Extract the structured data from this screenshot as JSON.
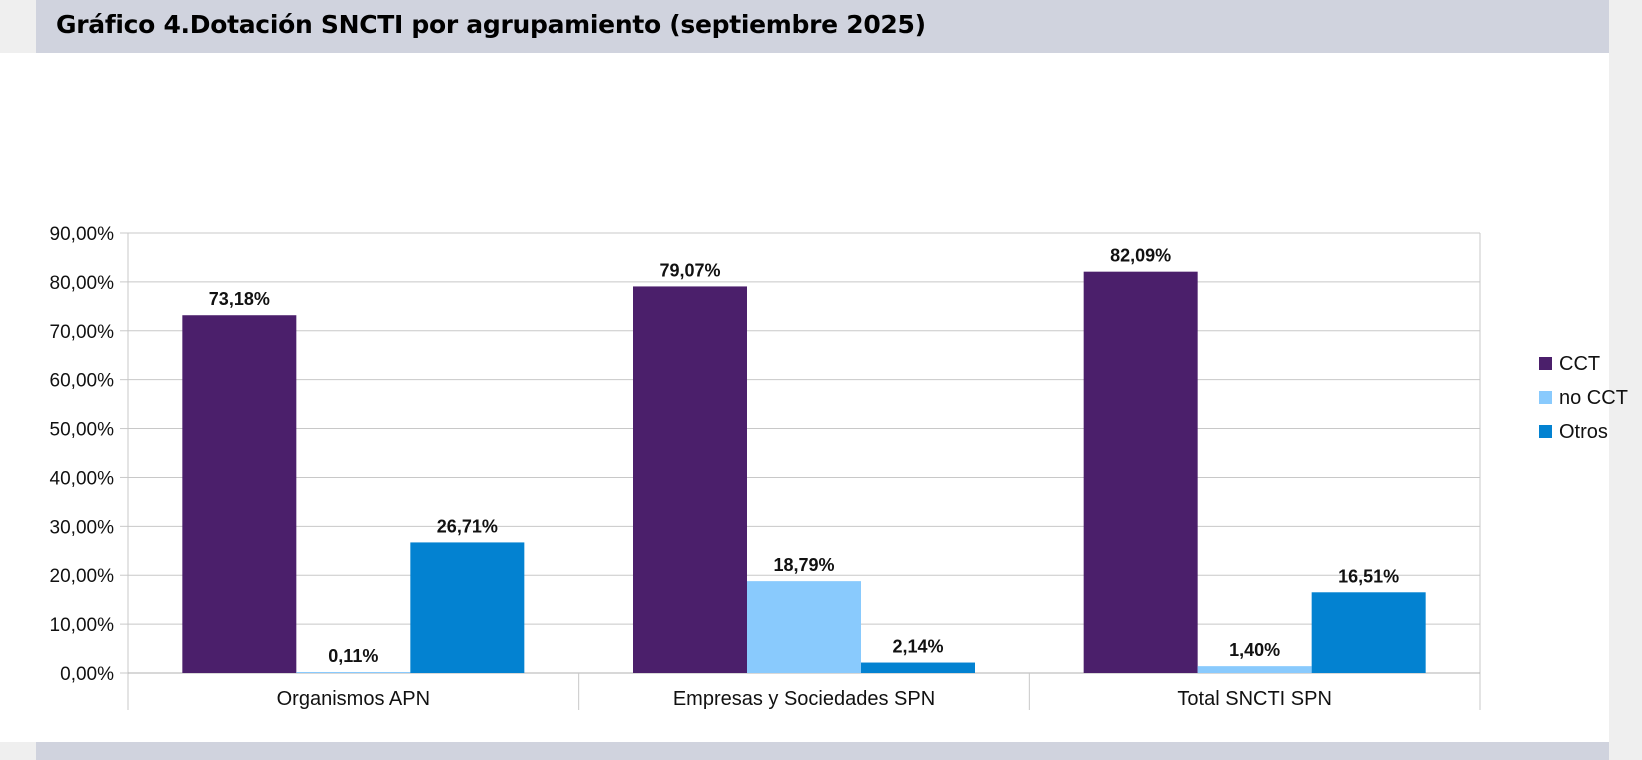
{
  "title": "Gráfico 4.Dotación SNCTI por agrupamiento (septiembre 2025)",
  "colors": {
    "CCT": "#4b1f6b",
    "no CCT": "#89cafd",
    "Otros": "#0382d1",
    "grid": "#c8c8c8",
    "header_bg": "#d0d3de"
  },
  "chart_data": {
    "type": "bar",
    "categories": [
      "Organismos APN",
      "Empresas y Sociedades SPN",
      "Total SNCTI SPN"
    ],
    "series": [
      {
        "name": "CCT",
        "values": [
          73.18,
          79.07,
          82.09
        ],
        "labels": [
          "73,18%",
          "79,07%",
          "82,09%"
        ]
      },
      {
        "name": "no CCT",
        "values": [
          0.11,
          18.79,
          1.4
        ],
        "labels": [
          "0,11%",
          "18,79%",
          "1,40%"
        ]
      },
      {
        "name": "Otros",
        "values": [
          26.71,
          2.14,
          16.51
        ],
        "labels": [
          "26,71%",
          "2,14%",
          "16,51%"
        ]
      }
    ],
    "yticks": [
      {
        "value": 0,
        "label": "0,00%"
      },
      {
        "value": 10,
        "label": "10,00%"
      },
      {
        "value": 20,
        "label": "20,00%"
      },
      {
        "value": 30,
        "label": "30,00%"
      },
      {
        "value": 40,
        "label": "40,00%"
      },
      {
        "value": 50,
        "label": "50,00%"
      },
      {
        "value": 60,
        "label": "60,00%"
      },
      {
        "value": 70,
        "label": "70,00%"
      },
      {
        "value": 80,
        "label": "80,00%"
      },
      {
        "value": 90,
        "label": "90,00%"
      }
    ],
    "ylim": [
      0,
      90
    ],
    "grid": true,
    "legend_position": "right"
  }
}
